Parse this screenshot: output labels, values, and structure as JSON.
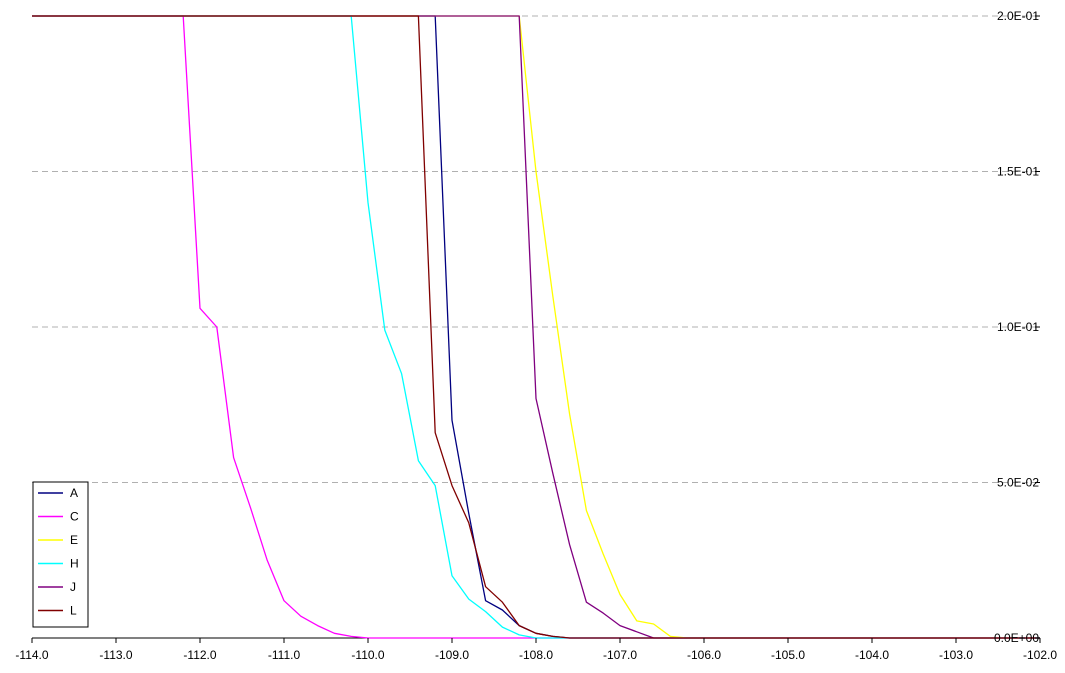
{
  "chart_data": {
    "type": "line",
    "title": "",
    "xlabel": "",
    "ylabel": "",
    "xlim": [
      -114.0,
      -102.0
    ],
    "ylim": [
      0,
      0.2
    ],
    "grid": "horizontal dashed",
    "y_axis_side": "right",
    "legend_position": "bottom-left",
    "x_ticks": [
      "-114.0",
      "-113.0",
      "-112.0",
      "-111.0",
      "-110.0",
      "-109.0",
      "-108.0",
      "-107.0",
      "-106.0",
      "-105.0",
      "-104.0",
      "-103.0",
      "-102.0"
    ],
    "x_tick_values": [
      -114,
      -113,
      -112,
      -111,
      -110,
      -109,
      -108,
      -107,
      -106,
      -105,
      -104,
      -103,
      -102
    ],
    "y_ticks": [
      "0.0E+00",
      "5.0E-02",
      "1.0E-01",
      "1.5E-01",
      "2.0E-01"
    ],
    "y_tick_values": [
      0,
      0.05,
      0.1,
      0.15,
      0.2
    ],
    "series": [
      {
        "name": "A",
        "color": "#000080",
        "points": [
          [
            -114.0,
            0.2
          ],
          [
            -109.2,
            0.2
          ],
          [
            -109.0,
            0.07
          ],
          [
            -108.8,
            0.04
          ],
          [
            -108.6,
            0.012
          ],
          [
            -108.4,
            0.009
          ],
          [
            -108.2,
            0.004
          ],
          [
            -108.0,
            0.0015
          ],
          [
            -107.8,
            0.0005
          ],
          [
            -107.6,
            0.0
          ],
          [
            -102.0,
            0.0
          ]
        ]
      },
      {
        "name": "C",
        "color": "#FF00FF",
        "points": [
          [
            -114.0,
            0.2
          ],
          [
            -112.2,
            0.2
          ],
          [
            -112.0,
            0.106
          ],
          [
            -111.8,
            0.1
          ],
          [
            -111.6,
            0.058
          ],
          [
            -111.4,
            0.042
          ],
          [
            -111.2,
            0.025
          ],
          [
            -111.0,
            0.012
          ],
          [
            -110.8,
            0.007
          ],
          [
            -110.6,
            0.004
          ],
          [
            -110.4,
            0.0015
          ],
          [
            -110.2,
            0.0005
          ],
          [
            -110.0,
            0.0
          ],
          [
            -102.0,
            0.0
          ]
        ]
      },
      {
        "name": "E",
        "color": "#FFFF00",
        "points": [
          [
            -114.0,
            0.2
          ],
          [
            -108.2,
            0.2
          ],
          [
            -108.0,
            0.15
          ],
          [
            -107.8,
            0.11
          ],
          [
            -107.6,
            0.072
          ],
          [
            -107.4,
            0.041
          ],
          [
            -107.2,
            0.027
          ],
          [
            -107.0,
            0.014
          ],
          [
            -106.8,
            0.0055
          ],
          [
            -106.6,
            0.0045
          ],
          [
            -106.4,
            0.0005
          ],
          [
            -106.2,
            0.0
          ],
          [
            -102.0,
            0.0
          ]
        ]
      },
      {
        "name": "H",
        "color": "#00FFFF",
        "points": [
          [
            -114.0,
            0.2
          ],
          [
            -110.2,
            0.2
          ],
          [
            -110.0,
            0.14
          ],
          [
            -109.8,
            0.099
          ],
          [
            -109.6,
            0.085
          ],
          [
            -109.4,
            0.057
          ],
          [
            -109.2,
            0.049
          ],
          [
            -109.0,
            0.02
          ],
          [
            -108.8,
            0.0125
          ],
          [
            -108.6,
            0.0085
          ],
          [
            -108.4,
            0.0035
          ],
          [
            -108.2,
            0.001
          ],
          [
            -108.0,
            0.0
          ],
          [
            -102.0,
            0.0
          ]
        ]
      },
      {
        "name": "J",
        "color": "#800080",
        "points": [
          [
            -114.0,
            0.2
          ],
          [
            -108.2,
            0.2
          ],
          [
            -108.0,
            0.077
          ],
          [
            -107.8,
            0.053
          ],
          [
            -107.6,
            0.03
          ],
          [
            -107.4,
            0.0115
          ],
          [
            -107.2,
            0.008
          ],
          [
            -107.0,
            0.004
          ],
          [
            -106.8,
            0.002
          ],
          [
            -106.6,
            0.0
          ],
          [
            -102.0,
            0.0
          ]
        ]
      },
      {
        "name": "L",
        "color": "#800000",
        "points": [
          [
            -114.0,
            0.2
          ],
          [
            -109.4,
            0.2
          ],
          [
            -109.2,
            0.066
          ],
          [
            -109.0,
            0.049
          ],
          [
            -108.8,
            0.037
          ],
          [
            -108.6,
            0.0165
          ],
          [
            -108.4,
            0.0115
          ],
          [
            -108.2,
            0.004
          ],
          [
            -108.0,
            0.0015
          ],
          [
            -107.8,
            0.0005
          ],
          [
            -107.6,
            0.0
          ],
          [
            -102.0,
            0.0
          ]
        ]
      }
    ]
  }
}
